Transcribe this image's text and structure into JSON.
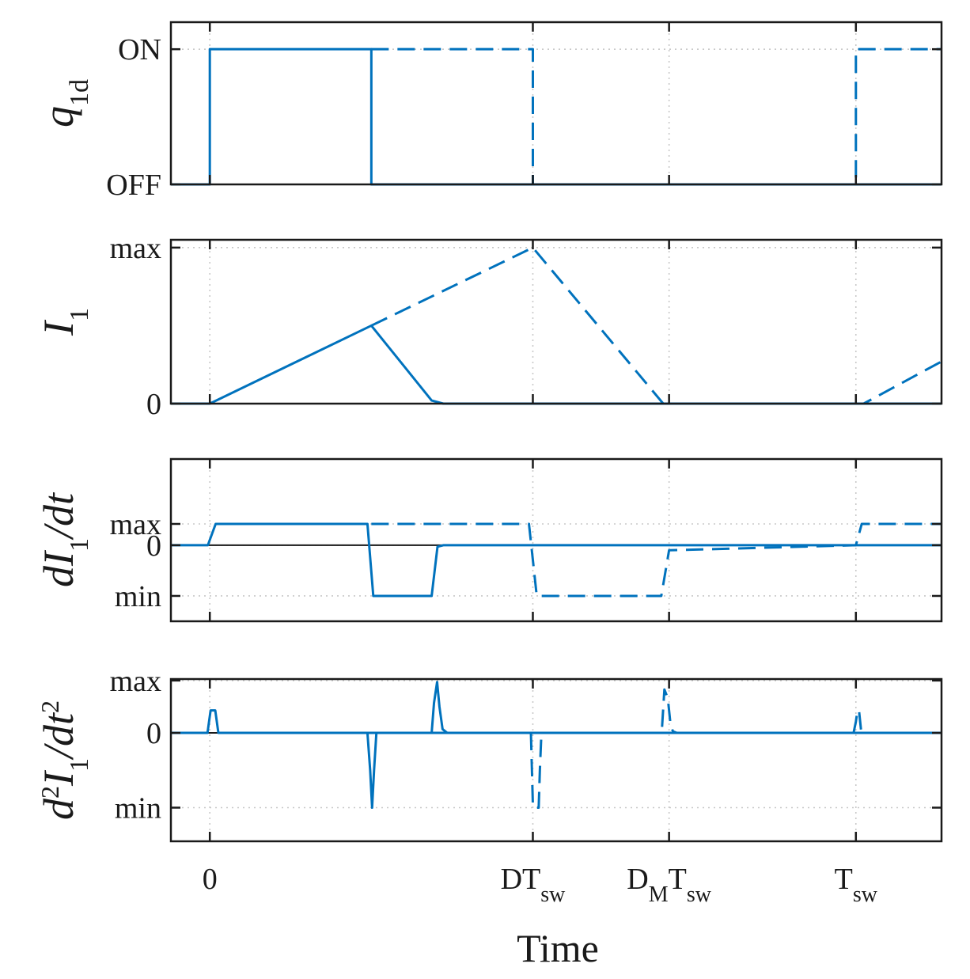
{
  "chart_data": {
    "type": "line",
    "shared_x": {
      "label": "Time",
      "range": [
        -0.1,
        1.88
      ],
      "ticks": [
        {
          "value": 0.0,
          "label": "0"
        },
        {
          "value": 0.83,
          "label": "DT",
          "sub": "sw"
        },
        {
          "value": 1.18,
          "label": "D",
          "sub": "M",
          "label2": "T",
          "sub2": "sw"
        },
        {
          "value": 1.66,
          "label": "T",
          "sub": "sw"
        }
      ]
    },
    "series_styles": {
      "solid": "#0072BD",
      "dashed": "#0072BD"
    },
    "panels": [
      {
        "id": "q1d",
        "ylabel_main": "q",
        "ylabel_sub": "1d",
        "ylim": [
          0,
          1.2
        ],
        "yticks": [
          {
            "value": 0,
            "label": "OFF"
          },
          {
            "value": 1,
            "label": "ON"
          }
        ],
        "series": [
          {
            "name": "solid",
            "style": "solid",
            "x": [
              -0.1,
              0.0,
              0.0,
              0.415,
              0.415,
              1.88
            ],
            "y": [
              0,
              0,
              1,
              1,
              0,
              0
            ]
          },
          {
            "name": "dashed",
            "style": "dashed",
            "x": [
              0.415,
              0.83,
              0.83,
              1.66,
              1.66,
              1.88
            ],
            "y": [
              1,
              1,
              0,
              0,
              1,
              1
            ]
          }
        ]
      },
      {
        "id": "I1",
        "ylabel_main": "I",
        "ylabel_sub": "1",
        "ylim": [
          0,
          1.05
        ],
        "yticks": [
          {
            "value": 0,
            "label": "0"
          },
          {
            "value": 1,
            "label": "max"
          }
        ],
        "series": [
          {
            "name": "solid",
            "style": "solid",
            "x": [
              -0.1,
              0.0,
              0.415,
              0.57,
              0.6,
              1.88
            ],
            "y": [
              0,
              0,
              0.5,
              0.02,
              0,
              0
            ]
          },
          {
            "name": "dashed",
            "style": "dashed",
            "x": [
              0.415,
              0.83,
              1.165,
              1.68,
              1.88
            ],
            "y": [
              0.5,
              1.0,
              0,
              0,
              0.27
            ]
          }
        ]
      },
      {
        "id": "dI1dt",
        "ylabel_main": "dI",
        "ylabel_sub": "1",
        "ylabel_tail": "/dt",
        "ylim": [
          -1.5,
          1.7
        ],
        "yticks": [
          {
            "value": -1,
            "label": "min"
          },
          {
            "value": 0,
            "label": "0"
          },
          {
            "value": 0.42,
            "label": "max"
          }
        ],
        "series": [
          {
            "name": "solid",
            "style": "solid",
            "x": [
              -0.1,
              -0.005,
              0.015,
              0.405,
              0.42,
              0.57,
              0.585,
              0.6,
              1.88
            ],
            "y": [
              0,
              0,
              0.42,
              0.42,
              -1,
              -1,
              -0.03,
              0,
              0
            ]
          },
          {
            "name": "dashed",
            "style": "dashed",
            "x": [
              0.415,
              0.82,
              0.84,
              1.16,
              1.18,
              1.66,
              1.675,
              1.88
            ],
            "y": [
              0.42,
              0.42,
              -1,
              -1,
              -0.1,
              0,
              0.42,
              0.42
            ]
          }
        ]
      },
      {
        "id": "d2I1dt2",
        "ylabel_main": "d",
        "ylabel_sup": "2",
        "ylabel_mid": "I",
        "ylabel_sub": "1",
        "ylabel_tail": "/dt",
        "ylabel_tail_sup": "2",
        "ylim": [
          -1.45,
          0.72
        ],
        "yticks": [
          {
            "value": -1,
            "label": "min"
          },
          {
            "value": 0,
            "label": "0"
          },
          {
            "value": 0.7,
            "label": "max"
          }
        ],
        "series": [
          {
            "name": "solid",
            "style": "solid",
            "x": [
              -0.1,
              -0.006,
              0.002,
              0.012,
              0.014,
              0.022,
              1.88
            ],
            "y": [
              0,
              0,
              0.3,
              0.3,
              0.3,
              0,
              0
            ]
          },
          {
            "name": "solid",
            "style": "solid",
            "x": [
              0.405,
              0.412,
              0.417,
              0.422,
              0.428,
              1.88
            ],
            "y": [
              0,
              -0.5,
              -1,
              -0.5,
              0,
              0
            ]
          },
          {
            "name": "solid",
            "style": "solid",
            "x": [
              0.57,
              0.576,
              0.584,
              0.59,
              0.598,
              0.61
            ],
            "y": [
              0,
              0.4,
              0.68,
              0.35,
              0.05,
              0
            ]
          },
          {
            "name": "dashed",
            "style": "dashed",
            "x": [
              0.825,
              0.83,
              0.832,
              0.845,
              0.848,
              0.852
            ],
            "y": [
              0,
              -0.95,
              -1,
              -1,
              -0.5,
              0
            ]
          },
          {
            "name": "dashed",
            "style": "dashed",
            "x": [
              1.162,
              1.168,
              1.174,
              1.178,
              1.184,
              1.19,
              1.2
            ],
            "y": [
              0.08,
              0.58,
              0.5,
              0.4,
              0.1,
              0.02,
              0
            ]
          },
          {
            "name": "dashed",
            "style": "dashed",
            "x": [
              1.654,
              1.66,
              1.664,
              1.668,
              1.674
            ],
            "y": [
              0,
              0.15,
              0.3,
              0.3,
              0
            ]
          }
        ]
      }
    ]
  }
}
